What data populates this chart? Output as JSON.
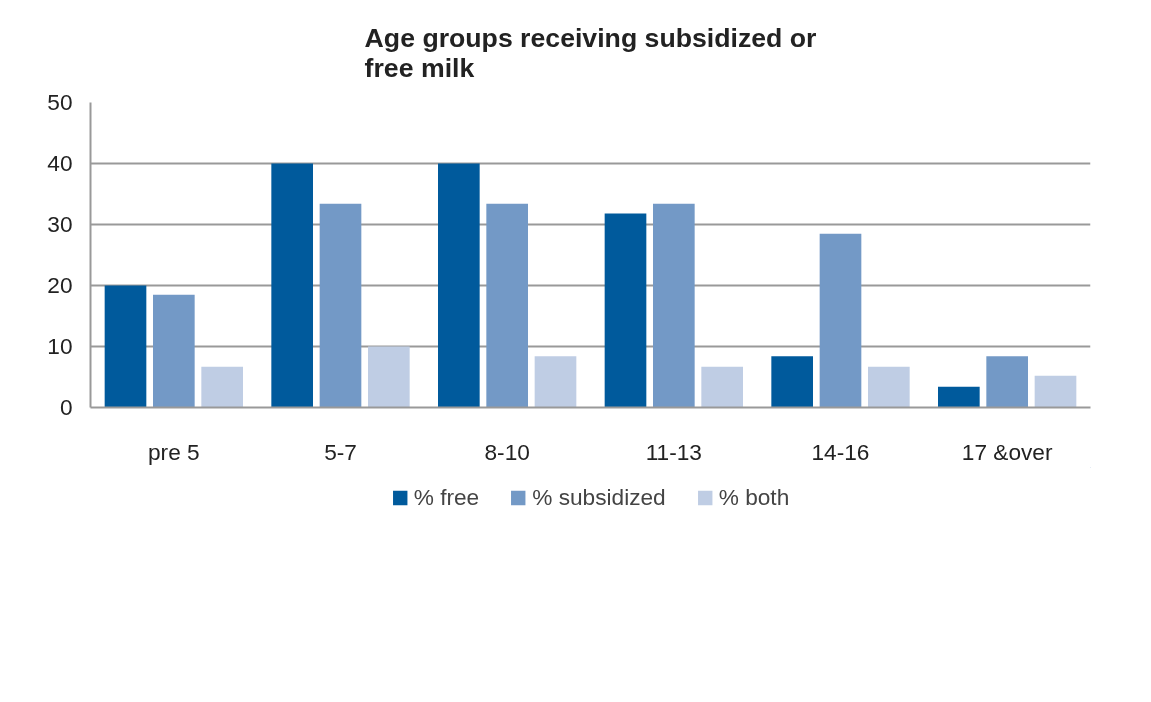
{
  "chart_data": {
    "type": "bar",
    "title": "Age groups receiving subsidized or\nfree milk",
    "categories": [
      "pre 5",
      "5-7",
      "8-10",
      "11-13",
      "14-16",
      "17 &over"
    ],
    "series": [
      {
        "name": "% free",
        "color": "#005a9c",
        "values": [
          20,
          40,
          40,
          31.8,
          8.4,
          3.4
        ]
      },
      {
        "name": "% subsidized",
        "color": "#7399c6",
        "values": [
          18.5,
          33.4,
          33.4,
          33.4,
          28.5,
          8.4
        ]
      },
      {
        "name": "% both",
        "color": "#bfcde4",
        "values": [
          6.7,
          10,
          8.4,
          6.7,
          6.7,
          5.2
        ]
      }
    ],
    "ylim": [
      0,
      50
    ],
    "yticks": [
      0,
      10,
      20,
      30,
      40,
      50
    ],
    "grid": "y",
    "legend": "bottom"
  }
}
